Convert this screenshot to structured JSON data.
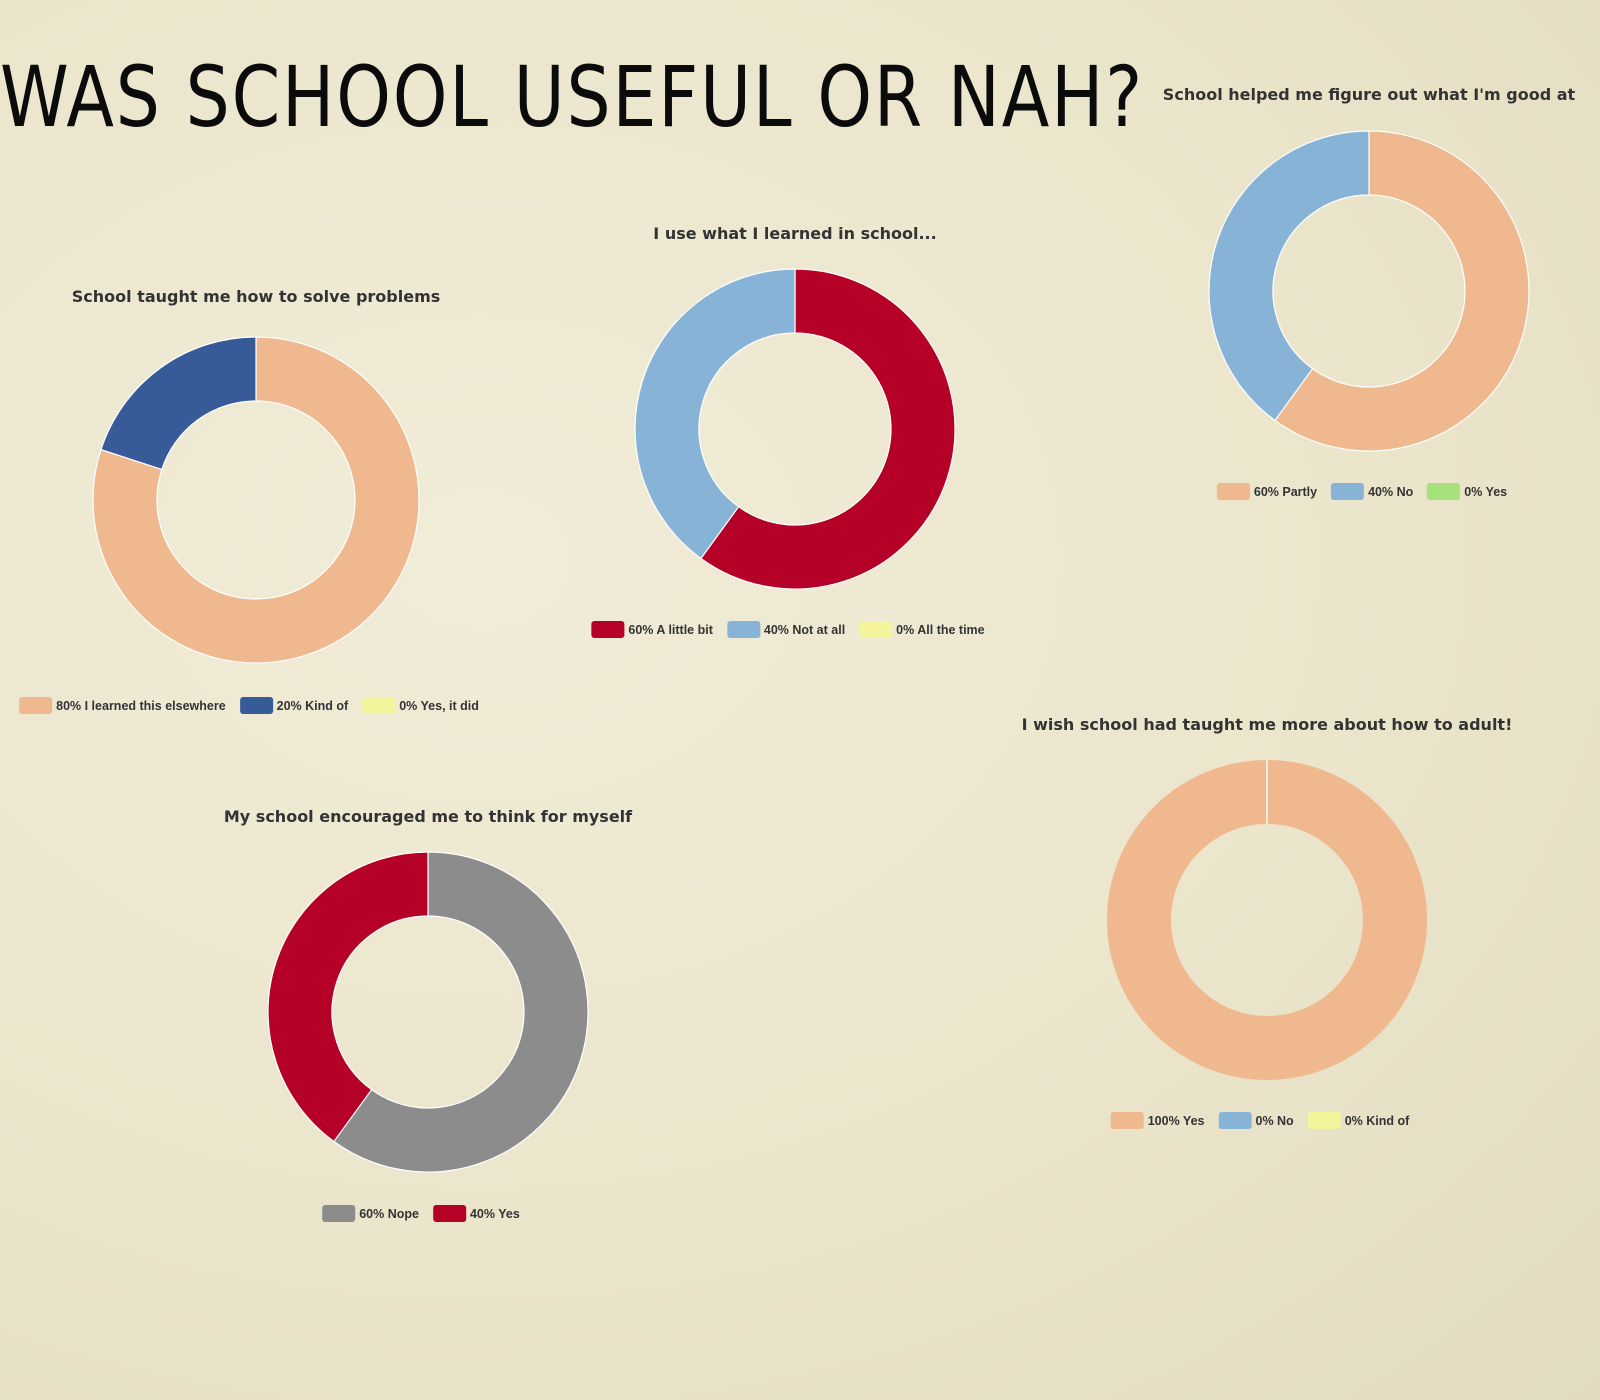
{
  "page": {
    "title": "WAS SCHOOL USEFUL OR NAH?"
  },
  "chart_data": [
    {
      "type": "pie",
      "title": "School taught me how to solve problems",
      "categories": [
        "I learned this elsewhere",
        "Kind of",
        "Yes, it did"
      ],
      "values": [
        80,
        20,
        0
      ],
      "labels": [
        "80% I learned this elsewhere",
        "20% Kind of",
        "0% Yes, it did"
      ],
      "colors": [
        "#f0b88e",
        "#375a99",
        "#f4f49c"
      ],
      "donut": true
    },
    {
      "type": "pie",
      "title": "I use what I learned in school...",
      "categories": [
        "A little bit",
        "Not at all",
        "All the time"
      ],
      "values": [
        60,
        40,
        0
      ],
      "labels": [
        "60% A little bit",
        "40% Not at all",
        "0% All the time"
      ],
      "colors": [
        "#b50027",
        "#87b4d6",
        "#f4f49c"
      ],
      "donut": true
    },
    {
      "type": "pie",
      "title": "School helped me figure out what I'm good at",
      "categories": [
        "Partly",
        "No",
        "Yes"
      ],
      "values": [
        60,
        40,
        0
      ],
      "labels": [
        "60% Partly",
        "40% No",
        "0% Yes"
      ],
      "colors": [
        "#f0b88e",
        "#87b4d6",
        "#a5e27c"
      ],
      "donut": true
    },
    {
      "type": "pie",
      "title": "My school encouraged me to think for myself",
      "categories": [
        "Nope",
        "Yes"
      ],
      "values": [
        60,
        40
      ],
      "labels": [
        "60% Nope",
        "40% Yes"
      ],
      "colors": [
        "#8c8c8c",
        "#b50027"
      ],
      "donut": true
    },
    {
      "type": "pie",
      "title": "I wish school had taught me more about how to adult!",
      "categories": [
        "Yes",
        "No",
        "Kind of"
      ],
      "values": [
        100,
        0,
        0
      ],
      "labels": [
        "100% Yes",
        "0% No",
        "0% Kind of"
      ],
      "colors": [
        "#f0b88e",
        "#87b4d6",
        "#f4f49c"
      ],
      "donut": true
    }
  ]
}
